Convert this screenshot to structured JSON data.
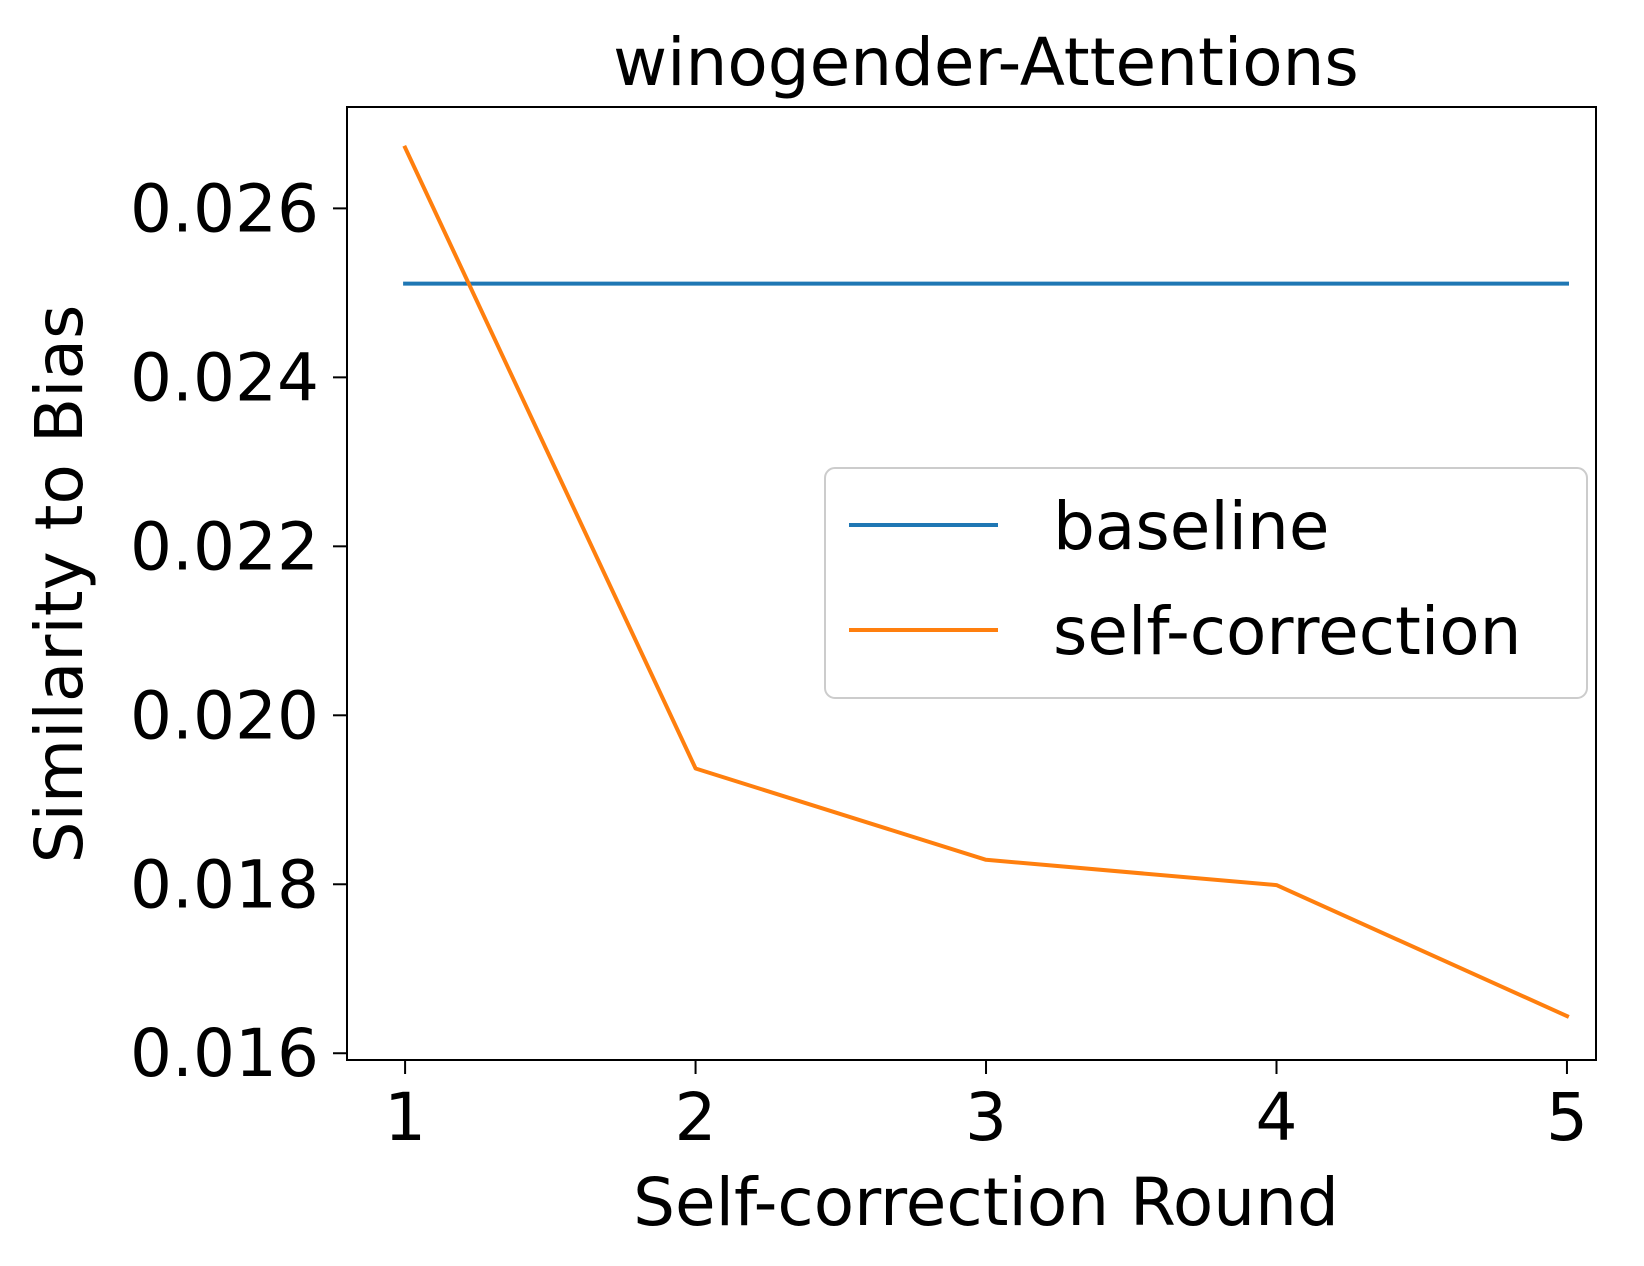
{
  "chart_data": {
    "type": "line",
    "title": "winogender-Attentions",
    "xlabel": "Self-correction Round",
    "ylabel": "Similarity to Bias",
    "xlim": [
      0.8,
      5.1
    ],
    "ylim": [
      0.01592,
      0.0272
    ],
    "xticks": [
      1,
      2,
      3,
      4,
      5
    ],
    "xtick_labels": [
      "1",
      "2",
      "3",
      "4",
      "5"
    ],
    "yticks": [
      0.016,
      0.018,
      0.02,
      0.022,
      0.024,
      0.026
    ],
    "ytick_labels": [
      "0.016",
      "0.018",
      "0.020",
      "0.022",
      "0.024",
      "0.026"
    ],
    "grid": false,
    "legend_position": "center-right",
    "series": [
      {
        "name": "baseline",
        "color": "#1f77b4",
        "x": [
          1,
          5
        ],
        "y": [
          0.02511,
          0.02511
        ]
      },
      {
        "name": "self-correction",
        "color": "#ff7f0e",
        "x": [
          1,
          2,
          3,
          4,
          5
        ],
        "y": [
          0.02672,
          0.01937,
          0.01829,
          0.01799,
          0.01644
        ]
      }
    ]
  }
}
